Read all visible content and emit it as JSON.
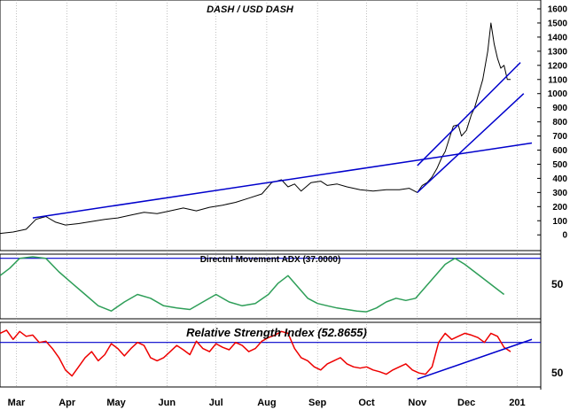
{
  "chart_data": [
    {
      "type": "line",
      "title": "DASH / USD DASH",
      "xlabel": "",
      "ylabel": "",
      "ylim": [
        -80,
        1600
      ],
      "y_ticks": [
        0,
        100,
        200,
        300,
        400,
        500,
        600,
        700,
        800,
        900,
        1000,
        1100,
        1200,
        1300,
        1400,
        1500,
        1600
      ],
      "x_ticks": [
        "Mar",
        "Apr",
        "May",
        "Jun",
        "Jul",
        "Aug",
        "Sep",
        "Oct",
        "Nov",
        "Dec",
        "201"
      ],
      "x_tick_days": [
        10,
        41,
        71,
        102,
        132,
        163,
        194,
        224,
        255,
        285,
        316
      ],
      "x_range_days": [
        0,
        325
      ],
      "grid": "vertical",
      "series": [
        {
          "x_days": [
            0,
            8,
            16,
            22,
            28,
            34,
            40,
            48,
            56,
            64,
            72,
            80,
            88,
            96,
            104,
            112,
            120,
            128,
            136,
            144,
            152,
            160,
            166,
            172,
            176,
            180,
            184,
            190,
            196,
            200,
            206,
            212,
            220,
            228,
            236,
            244,
            250,
            255,
            258,
            261,
            264,
            267,
            270,
            272,
            275,
            277,
            280,
            282,
            285,
            288,
            290,
            292,
            295,
            298,
            300,
            302,
            304,
            306,
            308,
            310,
            312
          ],
          "values": [
            10,
            20,
            40,
            110,
            130,
            90,
            70,
            80,
            95,
            110,
            120,
            140,
            160,
            150,
            170,
            190,
            170,
            195,
            210,
            230,
            260,
            290,
            370,
            390,
            340,
            360,
            310,
            370,
            380,
            350,
            360,
            340,
            320,
            310,
            320,
            320,
            330,
            300,
            350,
            370,
            410,
            470,
            550,
            590,
            700,
            770,
            780,
            700,
            740,
            850,
            900,
            980,
            1100,
            1300,
            1500,
            1350,
            1250,
            1180,
            1200,
            1100,
            1100
          ]
        }
      ],
      "trendlines": [
        {
          "x_days": [
            20,
            325
          ],
          "values": [
            120,
            650
          ]
        },
        {
          "x_days": [
            255,
            320
          ],
          "values": [
            300,
            1000
          ]
        },
        {
          "x_days": [
            255,
            318
          ],
          "values": [
            490,
            1220
          ]
        }
      ],
      "colors": {
        "line": "#000000",
        "trendline": "#0000cc",
        "grid": "#999999"
      }
    },
    {
      "type": "line",
      "title": "Directnl Movement ADX (37.0000)",
      "ylim": [
        0,
        80
      ],
      "y_ticks": [
        "50"
      ],
      "y_tick_values": [
        50
      ],
      "reference_line": 78,
      "series": [
        {
          "x_days": [
            0,
            6,
            12,
            20,
            28,
            36,
            44,
            52,
            60,
            68,
            76,
            84,
            92,
            100,
            108,
            116,
            124,
            132,
            140,
            148,
            156,
            164,
            170,
            176,
            182,
            188,
            194,
            200,
            206,
            212,
            218,
            224,
            230,
            236,
            242,
            248,
            254,
            260,
            266,
            272,
            278,
            284,
            290,
            296,
            302,
            308
          ],
          "values": [
            55,
            65,
            78,
            80,
            78,
            60,
            45,
            30,
            15,
            8,
            20,
            30,
            25,
            15,
            12,
            10,
            20,
            30,
            20,
            15,
            18,
            30,
            45,
            55,
            40,
            25,
            18,
            15,
            12,
            10,
            8,
            7,
            12,
            20,
            25,
            22,
            25,
            40,
            55,
            70,
            78,
            70,
            60,
            50,
            40,
            30
          ]
        }
      ],
      "colors": {
        "line": "#2e9e58",
        "reference": "#0000cc"
      }
    },
    {
      "type": "line",
      "title": "Relative Strength Index (52.8655)",
      "ylim": [
        0,
        100
      ],
      "y_ticks": [
        "50"
      ],
      "y_tick_values": [
        50
      ],
      "reference_line": 70,
      "series": [
        {
          "x_days": [
            0,
            4,
            8,
            12,
            16,
            20,
            24,
            28,
            32,
            36,
            40,
            44,
            48,
            52,
            56,
            60,
            64,
            68,
            72,
            76,
            80,
            84,
            88,
            92,
            96,
            100,
            104,
            108,
            112,
            116,
            120,
            124,
            128,
            132,
            136,
            140,
            144,
            148,
            152,
            156,
            160,
            164,
            168,
            172,
            176,
            180,
            184,
            188,
            192,
            196,
            200,
            204,
            208,
            212,
            216,
            220,
            224,
            228,
            232,
            236,
            240,
            244,
            248,
            252,
            256,
            260,
            264,
            268,
            272,
            276,
            280,
            284,
            288,
            292,
            296,
            300,
            304,
            308,
            312
          ],
          "values": [
            85,
            90,
            75,
            88,
            80,
            82,
            70,
            72,
            60,
            45,
            25,
            15,
            30,
            45,
            55,
            40,
            50,
            68,
            60,
            48,
            60,
            70,
            65,
            45,
            40,
            45,
            55,
            65,
            58,
            50,
            72,
            60,
            55,
            68,
            62,
            58,
            70,
            65,
            55,
            60,
            72,
            78,
            82,
            88,
            85,
            60,
            45,
            40,
            30,
            25,
            35,
            40,
            45,
            35,
            30,
            28,
            30,
            25,
            22,
            18,
            25,
            30,
            35,
            25,
            20,
            18,
            30,
            70,
            85,
            75,
            80,
            85,
            82,
            78,
            70,
            85,
            80,
            62,
            55
          ]
        }
      ],
      "trendlines": [
        {
          "x_days": [
            255,
            325
          ],
          "values": [
            10,
            75
          ]
        }
      ],
      "colors": {
        "line": "#ee0000",
        "reference": "#0000cc"
      }
    }
  ]
}
